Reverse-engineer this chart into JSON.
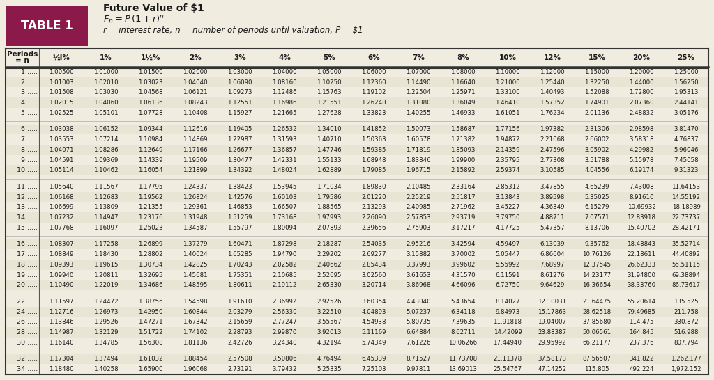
{
  "title_line1": "Future Value of $1",
  "title_line2": "F_n = P (1 + r)^n",
  "title_line3": "r = interest rate; n = number of periods until valuation; P = $1",
  "table_label": "TABLE 1",
  "header_row1": "Periods",
  "header_row2": "= n",
  "col_headers": [
    "½l%",
    "1%",
    "1½%",
    "2%",
    "3%",
    "4%",
    "5%",
    "6%",
    "7%",
    "8%",
    "10%",
    "12%",
    "15%",
    "20%",
    "25%"
  ],
  "periods": [
    1,
    2,
    3,
    4,
    5,
    6,
    7,
    8,
    9,
    10,
    11,
    12,
    13,
    14,
    15,
    16,
    17,
    18,
    19,
    20,
    22,
    24,
    26,
    28,
    30,
    32,
    34
  ],
  "data": [
    [
      1.005,
      1.01,
      1.015,
      1.02,
      1.03,
      1.04,
      1.05,
      1.06,
      1.07,
      1.08,
      1.1,
      1.12,
      1.15,
      1.2,
      1.25
    ],
    [
      1.01003,
      1.0201,
      1.03023,
      1.0404,
      1.0609,
      1.0816,
      1.1025,
      1.1236,
      1.1449,
      1.1664,
      1.21,
      1.2544,
      1.3225,
      1.44,
      1.5625
    ],
    [
      1.01508,
      1.0303,
      1.04568,
      1.06121,
      1.09273,
      1.12486,
      1.15763,
      1.19102,
      1.22504,
      1.25971,
      1.331,
      1.40493,
      1.52088,
      1.728,
      1.95313
    ],
    [
      1.02015,
      1.0406,
      1.06136,
      1.08243,
      1.12551,
      1.16986,
      1.21551,
      1.26248,
      1.3108,
      1.36049,
      1.4641,
      1.57352,
      1.74901,
      2.0736,
      2.44141
    ],
    [
      1.02525,
      1.05101,
      1.07728,
      1.10408,
      1.15927,
      1.21665,
      1.27628,
      1.33823,
      1.40255,
      1.46933,
      1.61051,
      1.76234,
      2.01136,
      2.48832,
      3.05176
    ],
    [
      1.03038,
      1.06152,
      1.09344,
      1.12616,
      1.19405,
      1.26532,
      1.3401,
      1.41852,
      1.50073,
      1.58687,
      1.77156,
      1.97382,
      2.31306,
      2.98598,
      3.8147
    ],
    [
      1.03553,
      1.07214,
      1.10984,
      1.14869,
      1.22987,
      1.31593,
      1.4071,
      1.50363,
      1.60578,
      1.71382,
      1.94872,
      2.21068,
      2.66002,
      3.58318,
      4.76837
    ],
    [
      1.04071,
      1.08286,
      1.12649,
      1.17166,
      1.26677,
      1.36857,
      1.47746,
      1.59385,
      1.71819,
      1.85093,
      2.14359,
      2.47596,
      3.05902,
      4.29982,
      5.96046
    ],
    [
      1.04591,
      1.09369,
      1.14339,
      1.19509,
      1.30477,
      1.42331,
      1.55133,
      1.68948,
      1.83846,
      1.999,
      2.35795,
      2.77308,
      3.51788,
      5.15978,
      7.45058
    ],
    [
      1.05114,
      1.10462,
      1.16054,
      1.21899,
      1.34392,
      1.48024,
      1.62889,
      1.79085,
      1.96715,
      2.15892,
      2.59374,
      3.10585,
      4.04556,
      6.19174,
      9.31323
    ],
    [
      1.0564,
      1.11567,
      1.17795,
      1.24337,
      1.38423,
      1.53945,
      1.71034,
      1.8983,
      2.10485,
      2.33164,
      2.85312,
      3.47855,
      4.65239,
      7.43008,
      11.64153
    ],
    [
      1.06168,
      1.12683,
      1.19562,
      1.26824,
      1.42576,
      1.60103,
      1.79586,
      2.0122,
      2.25219,
      2.51817,
      3.13843,
      3.89598,
      5.35025,
      8.9161,
      14.55192
    ],
    [
      1.06699,
      1.13809,
      1.21355,
      1.29361,
      1.46853,
      1.66507,
      1.88565,
      2.13293,
      2.40985,
      2.71962,
      3.45227,
      4.36349,
      6.15279,
      10.69932,
      18.18989
    ],
    [
      1.07232,
      1.14947,
      1.23176,
      1.31948,
      1.51259,
      1.73168,
      1.97993,
      2.2609,
      2.57853,
      2.93719,
      3.7975,
      4.88711,
      7.07571,
      12.83918,
      22.73737
    ],
    [
      1.07768,
      1.16097,
      1.25023,
      1.34587,
      1.55797,
      1.80094,
      2.07893,
      2.39656,
      2.75903,
      3.17217,
      4.17725,
      5.47357,
      8.13706,
      15.40702,
      28.42171
    ],
    [
      1.08307,
      1.17258,
      1.26899,
      1.37279,
      1.60471,
      1.87298,
      2.18287,
      2.54035,
      2.95216,
      3.42594,
      4.59497,
      6.13039,
      9.35762,
      18.48843,
      35.52714
    ],
    [
      1.08849,
      1.1843,
      1.28802,
      1.40024,
      1.65285,
      1.9479,
      2.29202,
      2.69277,
      3.15882,
      3.70002,
      5.05447,
      6.86604,
      10.76126,
      22.18611,
      44.40892
    ],
    [
      1.09393,
      1.19615,
      1.30734,
      1.42825,
      1.70243,
      2.02582,
      2.40662,
      2.85434,
      3.37993,
      3.99602,
      5.55992,
      7.68997,
      12.37545,
      26.62333,
      55.51115
    ],
    [
      1.0994,
      1.20811,
      1.32695,
      1.45681,
      1.75351,
      2.10685,
      2.52695,
      3.0256,
      3.61653,
      4.3157,
      6.11591,
      8.61276,
      14.23177,
      31.948,
      69.38894
    ],
    [
      1.1049,
      1.22019,
      1.34686,
      1.48595,
      1.80611,
      2.19112,
      2.6533,
      3.20714,
      3.86968,
      4.66096,
      6.7275,
      9.64629,
      16.36654,
      38.3376,
      86.73617
    ],
    [
      1.11597,
      1.24472,
      1.38756,
      1.54598,
      1.9161,
      2.36992,
      2.92526,
      3.60354,
      4.4304,
      5.43654,
      8.14027,
      12.10031,
      21.64475,
      55.20614,
      135.5253
    ],
    [
      1.12716,
      1.26973,
      1.4295,
      1.60844,
      2.03279,
      2.5633,
      3.2251,
      4.04893,
      5.07237,
      6.34118,
      9.84973,
      15.17863,
      28.62518,
      79.49685,
      211.7582
    ],
    [
      1.13846,
      1.29526,
      1.47271,
      1.67342,
      2.15659,
      2.77247,
      3.55567,
      4.54938,
      5.80735,
      7.39635,
      11.91818,
      19.04007,
      37.8568,
      114.4755,
      330.8722
    ],
    [
      1.14987,
      1.32129,
      1.51722,
      1.74102,
      2.28793,
      2.9987,
      3.92013,
      5.11169,
      6.64884,
      8.62711,
      14.42099,
      23.88387,
      50.06561,
      164.8447,
      516.9879
    ],
    [
      1.1614,
      1.34785,
      1.56308,
      1.81136,
      2.42726,
      3.2434,
      4.32194,
      5.74349,
      7.61226,
      10.06266,
      17.4494,
      29.95992,
      66.21177,
      237.3763,
      807.7936
    ],
    [
      1.17304,
      1.37494,
      1.61032,
      1.88454,
      2.57508,
      3.50806,
      4.76494,
      6.45339,
      8.71527,
      11.73708,
      21.11378,
      37.58173,
      87.56507,
      341.8219,
      1262.177
    ],
    [
      1.1848,
      1.40258,
      1.659,
      1.96068,
      2.73191,
      3.79432,
      5.25335,
      7.25103,
      9.97811,
      13.69013,
      25.54767,
      47.14252,
      115.8048,
      492.2235,
      1972.152
    ]
  ],
  "bg_color": "#f0ede0",
  "header_bg": "#8b1a4a",
  "header_text_color": "#ffffff",
  "title_bg": "#ffffff",
  "row_colors": [
    "#f0ede0",
    "#e8e5d5"
  ],
  "border_color": "#555555",
  "text_color": "#1a1a1a",
  "col_header_color": "#1a1a1a"
}
